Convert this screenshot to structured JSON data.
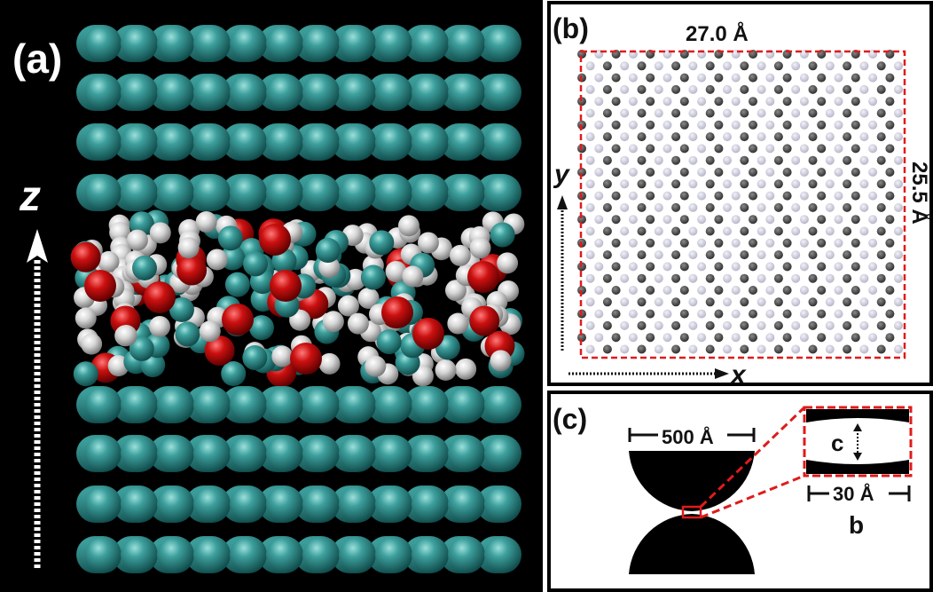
{
  "panel_a": {
    "label": "(a)",
    "axis_label": "z",
    "colors": {
      "background": "#000000",
      "substrate_atom": "#2f8f8f",
      "oxygen": "#c81414",
      "hydrogen": "#d9d9d9",
      "carbon": "#3a9a9a"
    }
  },
  "panel_b": {
    "label": "(b)",
    "width_label": "27.0 Å",
    "height_label": "25.5 Å",
    "x_axis_label": "x",
    "y_axis_label": "y",
    "colors": {
      "dark_atom": "#4a4a4a",
      "light_atom": "#c9c9d9",
      "box": "#e01b1b"
    }
  },
  "panel_c": {
    "label": "(c)",
    "diameter_label": "500 Å",
    "width_label": "30 Å",
    "gap_label": "c",
    "contact_label": "b",
    "colors": {
      "shape": "#000000",
      "zoom_box": "#e01b1b"
    }
  }
}
